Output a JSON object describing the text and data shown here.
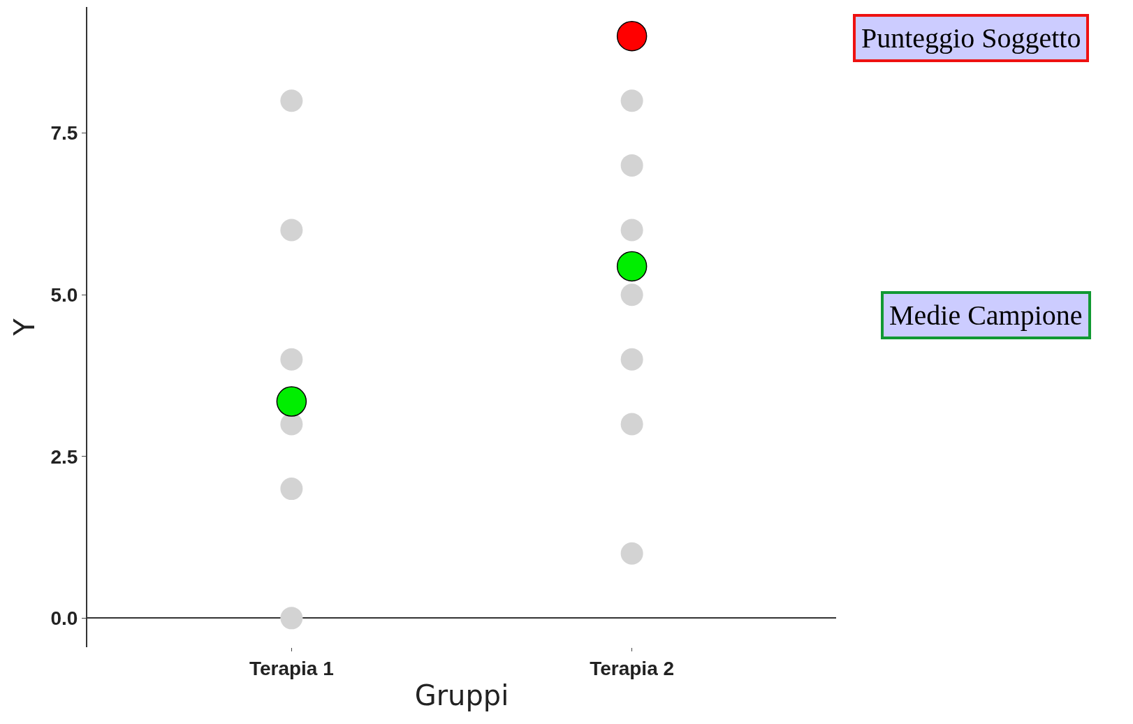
{
  "chart_data": {
    "type": "scatter",
    "xlabel": "Gruppi",
    "ylabel": "Y",
    "categories": [
      "Terapia 1",
      "Terapia 2"
    ],
    "series": [
      {
        "color": "#d3d3d3",
        "x": [
          "Terapia 1",
          "Terapia 1",
          "Terapia 1",
          "Terapia 1",
          "Terapia 1",
          "Terapia 1",
          "Terapia 2",
          "Terapia 2",
          "Terapia 2",
          "Terapia 2",
          "Terapia 2",
          "Terapia 2",
          "Terapia 2"
        ],
        "values": [
          8,
          6,
          4,
          3,
          2,
          0,
          8,
          7,
          6,
          5,
          4,
          3,
          1
        ]
      },
      {
        "color": "#ff0000",
        "x": [
          "Terapia 2"
        ],
        "values": [
          9
        ]
      },
      {
        "color": "#00ee00",
        "x": [
          "Terapia 1",
          "Terapia 2"
        ],
        "values": [
          3.35,
          5.44
        ]
      }
    ],
    "ylim": [
      -0.45,
      9.45
    ],
    "yticks": [
      {
        "value": 0,
        "label": "0.0"
      },
      {
        "value": 2.5,
        "label": "2.5"
      },
      {
        "value": 5,
        "label": "5.0"
      },
      {
        "value": 7.5,
        "label": "7.5"
      }
    ],
    "annotations": [
      "Punteggio Soggetto",
      "Medie Campione"
    ],
    "marker": "circle"
  }
}
